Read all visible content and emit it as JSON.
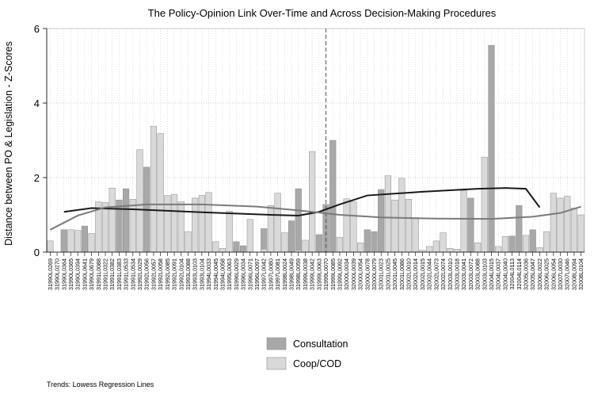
{
  "chart_data": {
    "type": "bar",
    "title": "The Policy-Opinion Link Over-Time and Across Decision-Making Procedures",
    "xlabel": "",
    "ylabel": "Distance between PO & Legislation - Z-Scores",
    "ylim": [
      0,
      6
    ],
    "yticks": [
      0,
      2,
      4,
      6
    ],
    "grid": "dotted",
    "legend_position": "bottom",
    "reference_line_category_index": 40,
    "note": "Trends: Lowess Regression Lines",
    "categories": [
      "31990L0269",
      "31990L0270",
      "31990L0364",
      "31990L0365",
      "31990L0394",
      "31990L0641",
      "31990L0679",
      "31991L0088",
      "31991L0322",
      "31991L0382",
      "31991L0383",
      "31991L0533",
      "31991L0534",
      "31992L0029",
      "31992L0056",
      "31992L0057",
      "31992L0058",
      "31992L0085",
      "31992L0091",
      "31992L0104",
      "31993L0088",
      "31993L0103",
      "31993L0104",
      "31994L0033",
      "31994L0045",
      "31994L0058",
      "31995L0063",
      "31996L0029",
      "31996L0034",
      "31996L0071",
      "31996L0097",
      "31997L0042",
      "31997L0080",
      "31997L0081",
      "31998L0024",
      "31998L0049",
      "31998L0059",
      "31999L0038",
      "31999L0042",
      "31999L0063",
      "31999L0070",
      "31999L0085",
      "31999L0092",
      "32000L0034",
      "32000L0039",
      "32000L0054",
      "32000L0078",
      "32000L0079",
      "32001L0023",
      "32001L0025",
      "32001L0045",
      "32001L0086",
      "32002L0010",
      "32002L0014",
      "32002L0015",
      "32002L0044",
      "32002L0073",
      "32002L0074",
      "32003L0010",
      "32003L0018",
      "32003L0041",
      "32003L0072",
      "32003L0088",
      "32003L0103",
      "32004L0015",
      "32004L0037",
      "32004L0040",
      "32004L0113",
      "32004L0114",
      "32005L0036",
      "32005L0047",
      "32006L0022",
      "32006L0025",
      "32006L0054",
      "32007L0030",
      "32007L0046",
      "32008L0094",
      "32008L0104"
    ],
    "series": [
      {
        "name": "Consultation",
        "color": "#a8a8a8",
        "values": [
          null,
          null,
          0.6,
          null,
          null,
          0.7,
          null,
          null,
          null,
          null,
          1.4,
          1.7,
          null,
          null,
          2.28,
          null,
          null,
          null,
          null,
          null,
          null,
          null,
          null,
          null,
          null,
          null,
          null,
          0.28,
          0.17,
          null,
          null,
          0.63,
          null,
          null,
          null,
          0.84,
          1.7,
          null,
          null,
          0.47,
          1.28,
          3.0,
          null,
          null,
          null,
          null,
          0.6,
          0.55,
          1.68,
          null,
          null,
          null,
          null,
          null,
          null,
          null,
          null,
          null,
          null,
          null,
          null,
          1.45,
          null,
          null,
          5.55,
          null,
          null,
          0.43,
          1.25,
          null,
          0.6,
          null,
          null,
          null,
          null,
          null,
          null,
          null
        ]
      },
      {
        "name": "Coop/COD",
        "color": "#d9d9d9",
        "values": [
          0.3,
          null,
          null,
          0.6,
          0.58,
          null,
          0.5,
          1.35,
          1.33,
          1.72,
          null,
          null,
          1.42,
          2.75,
          null,
          3.38,
          3.18,
          1.52,
          1.55,
          1.35,
          0.55,
          1.45,
          1.52,
          1.6,
          0.28,
          0.1,
          1.1,
          null,
          null,
          0.88,
          null,
          0.08,
          1.25,
          1.58,
          0.52,
          null,
          0.05,
          0.32,
          2.7,
          null,
          null,
          null,
          0.4,
          1.43,
          1.35,
          0.25,
          null,
          null,
          null,
          2.05,
          1.4,
          1.98,
          1.42,
          0.92,
          0.05,
          0.15,
          0.3,
          0.52,
          0.1,
          0.08,
          1.65,
          null,
          0.25,
          2.55,
          null,
          0.15,
          0.42,
          null,
          null,
          0.45,
          null,
          0.12,
          0.55,
          1.58,
          1.45,
          1.5,
          1.18,
          1.0
        ]
      }
    ],
    "trend_lines": [
      {
        "name": "Consultation",
        "color": "#1a1a1a",
        "x": [
          2,
          6,
          12,
          22,
          32,
          36,
          39,
          42,
          46,
          54,
          62,
          66,
          69,
          71
        ],
        "y": [
          1.08,
          1.18,
          1.15,
          1.07,
          1.0,
          0.98,
          1.08,
          1.28,
          1.52,
          1.62,
          1.7,
          1.72,
          1.7,
          1.2
        ]
      },
      {
        "name": "Coop/COD",
        "color": "#7a7a7a",
        "x": [
          0,
          4,
          8,
          14,
          22,
          30,
          36,
          42,
          48,
          56,
          64,
          70,
          74,
          77
        ],
        "y": [
          0.6,
          0.98,
          1.2,
          1.28,
          1.28,
          1.22,
          1.12,
          1.0,
          0.93,
          0.9,
          0.89,
          0.95,
          1.05,
          1.22
        ]
      }
    ]
  }
}
